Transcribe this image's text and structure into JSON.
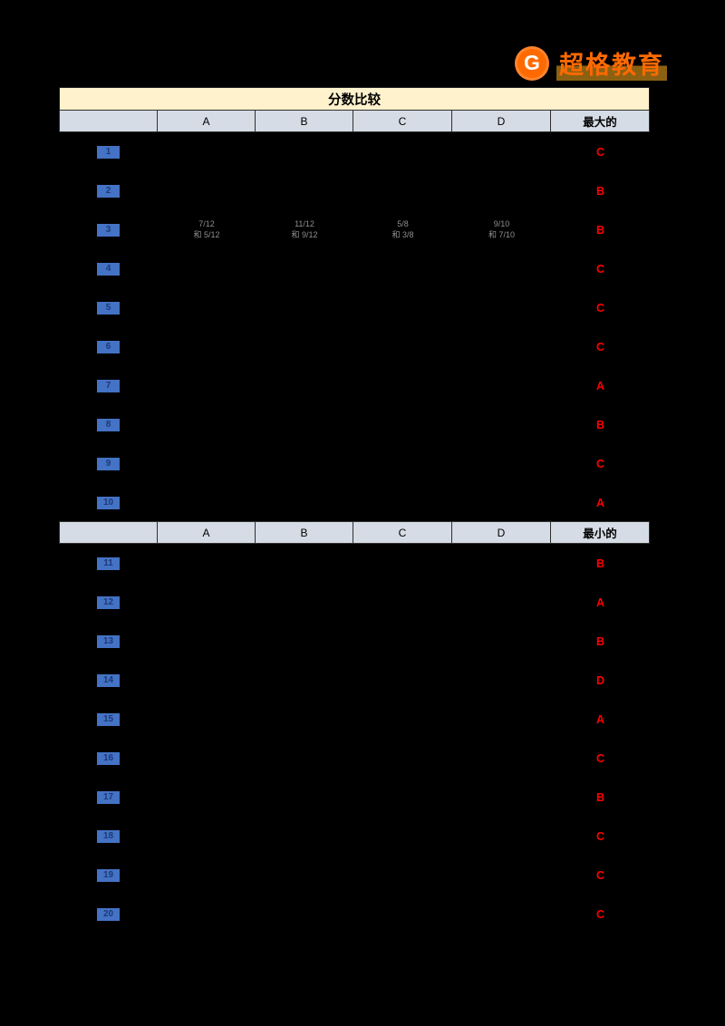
{
  "logo": {
    "text": "超格教育",
    "icon_letter": "G"
  },
  "table": {
    "title": "分数比较",
    "columns": [
      "A",
      "B",
      "C",
      "D"
    ],
    "sections": [
      {
        "answer_header": "最大的",
        "rows": [
          {
            "num": "1",
            "answer": "C",
            "cells": [
              "",
              "",
              "",
              ""
            ]
          },
          {
            "num": "2",
            "answer": "B",
            "cells": [
              "",
              "",
              "",
              ""
            ]
          },
          {
            "num": "3",
            "answer": "B",
            "cells": [
              [
                "7/12",
                "和 5/12"
              ],
              [
                "11/12",
                "和 9/12"
              ],
              [
                "5/8",
                "和 3/8"
              ],
              [
                "9/10",
                "和 7/10"
              ]
            ]
          },
          {
            "num": "4",
            "answer": "C",
            "cells": [
              "",
              "",
              "",
              ""
            ]
          },
          {
            "num": "5",
            "answer": "C",
            "cells": [
              "",
              "",
              "",
              ""
            ]
          },
          {
            "num": "6",
            "answer": "C",
            "cells": [
              "",
              "",
              "",
              ""
            ]
          },
          {
            "num": "7",
            "answer": "A",
            "cells": [
              "",
              "",
              "",
              ""
            ]
          },
          {
            "num": "8",
            "answer": "B",
            "cells": [
              "",
              "",
              "",
              ""
            ]
          },
          {
            "num": "9",
            "answer": "C",
            "cells": [
              "",
              "",
              "",
              ""
            ]
          },
          {
            "num": "10",
            "answer": "A",
            "cells": [
              "",
              "",
              "",
              ""
            ]
          }
        ]
      },
      {
        "answer_header": "最小的",
        "rows": [
          {
            "num": "11",
            "answer": "B",
            "cells": [
              "",
              "",
              "",
              ""
            ]
          },
          {
            "num": "12",
            "answer": "A",
            "cells": [
              "",
              "",
              "",
              ""
            ]
          },
          {
            "num": "13",
            "answer": "B",
            "cells": [
              "",
              "",
              "",
              ""
            ]
          },
          {
            "num": "14",
            "answer": "D",
            "cells": [
              "",
              "",
              "",
              ""
            ]
          },
          {
            "num": "15",
            "answer": "A",
            "cells": [
              "",
              "",
              "",
              ""
            ]
          },
          {
            "num": "16",
            "answer": "C",
            "cells": [
              "",
              "",
              "",
              ""
            ]
          },
          {
            "num": "17",
            "answer": "B",
            "cells": [
              "",
              "",
              "",
              ""
            ]
          },
          {
            "num": "18",
            "answer": "C",
            "cells": [
              "",
              "",
              "",
              ""
            ]
          },
          {
            "num": "19",
            "answer": "C",
            "cells": [
              "",
              "",
              "",
              ""
            ]
          },
          {
            "num": "20",
            "answer": "C",
            "cells": [
              "",
              "",
              "",
              ""
            ]
          }
        ]
      }
    ]
  },
  "colors": {
    "number_chip": "#4472C4",
    "answer": "#FF0000",
    "title_bg": "#FFF2CC",
    "header_bg": "#D6DCE5",
    "logo_orange": "#FF6A00"
  }
}
